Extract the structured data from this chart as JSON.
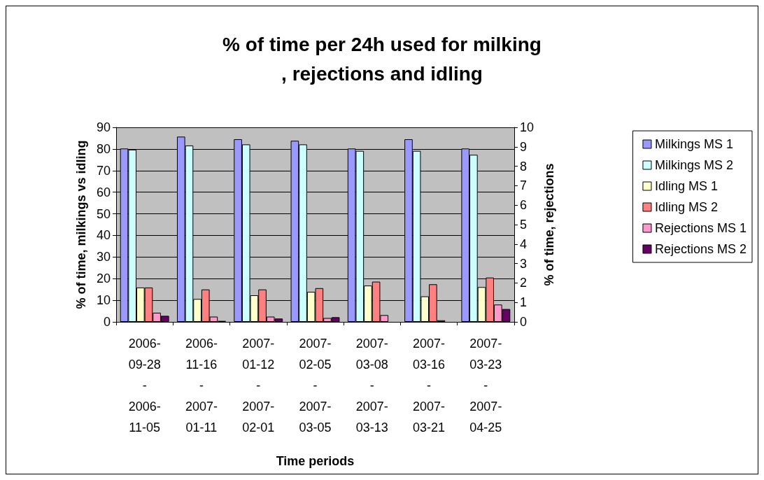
{
  "chart_data": {
    "type": "bar",
    "title": "% of time per 24h used for milking, rejections and idling",
    "xlabel": "Time periods",
    "ylabel": "% of time, milkings vs idling",
    "y2label": "% of time, rejections",
    "categories": [
      "2006-09-28 - 2006-11-05",
      "2006-11-16 - 2007-01-11",
      "2007-01-12 - 2007-02-01",
      "2007-02-05 - 2007-03-05",
      "2007-03-08 - 2007-03-13",
      "2007-03-16 - 2007-03-21",
      "2007-03-23 - 2007-04-25"
    ],
    "series": [
      {
        "name": "Milkings MS 1",
        "color": "#9999ff",
        "values": [
          80.2,
          85.7,
          84.5,
          83.8,
          80.2,
          84.5,
          80.2
        ]
      },
      {
        "name": "Milkings MS 2",
        "color": "#ccffff",
        "values": [
          79.7,
          81.6,
          82.1,
          82.1,
          79.1,
          79.1,
          77.3
        ]
      },
      {
        "name": "Idling MS 1",
        "color": "#ffffcc",
        "values": [
          15.9,
          10.6,
          12.3,
          13.9,
          16.8,
          11.8,
          16.1
        ]
      },
      {
        "name": "Idling MS 2",
        "color": "#ff8080",
        "values": [
          15.9,
          15.0,
          15.0,
          15.6,
          18.6,
          17.4,
          20.5
        ]
      },
      {
        "name": "Rejections MS 1",
        "color": "#ff99cc",
        "axis": "y2",
        "values": [
          0.47,
          0.27,
          0.27,
          0.2,
          0.35,
          0.08,
          0.89
        ]
      },
      {
        "name": "Rejections MS 2",
        "color": "#660066",
        "axis": "y2",
        "values": [
          0.31,
          0.05,
          0.17,
          0.24,
          null,
          null,
          0.66
        ]
      }
    ],
    "ylim": [
      0,
      90
    ],
    "yticks": [
      0,
      10,
      20,
      30,
      40,
      50,
      60,
      70,
      80,
      90
    ],
    "y2lim": [
      0,
      10
    ],
    "y2ticks": [
      0,
      1,
      2,
      3,
      4,
      5,
      6,
      7,
      8,
      9,
      10
    ],
    "grid": "y",
    "legend": "right"
  }
}
